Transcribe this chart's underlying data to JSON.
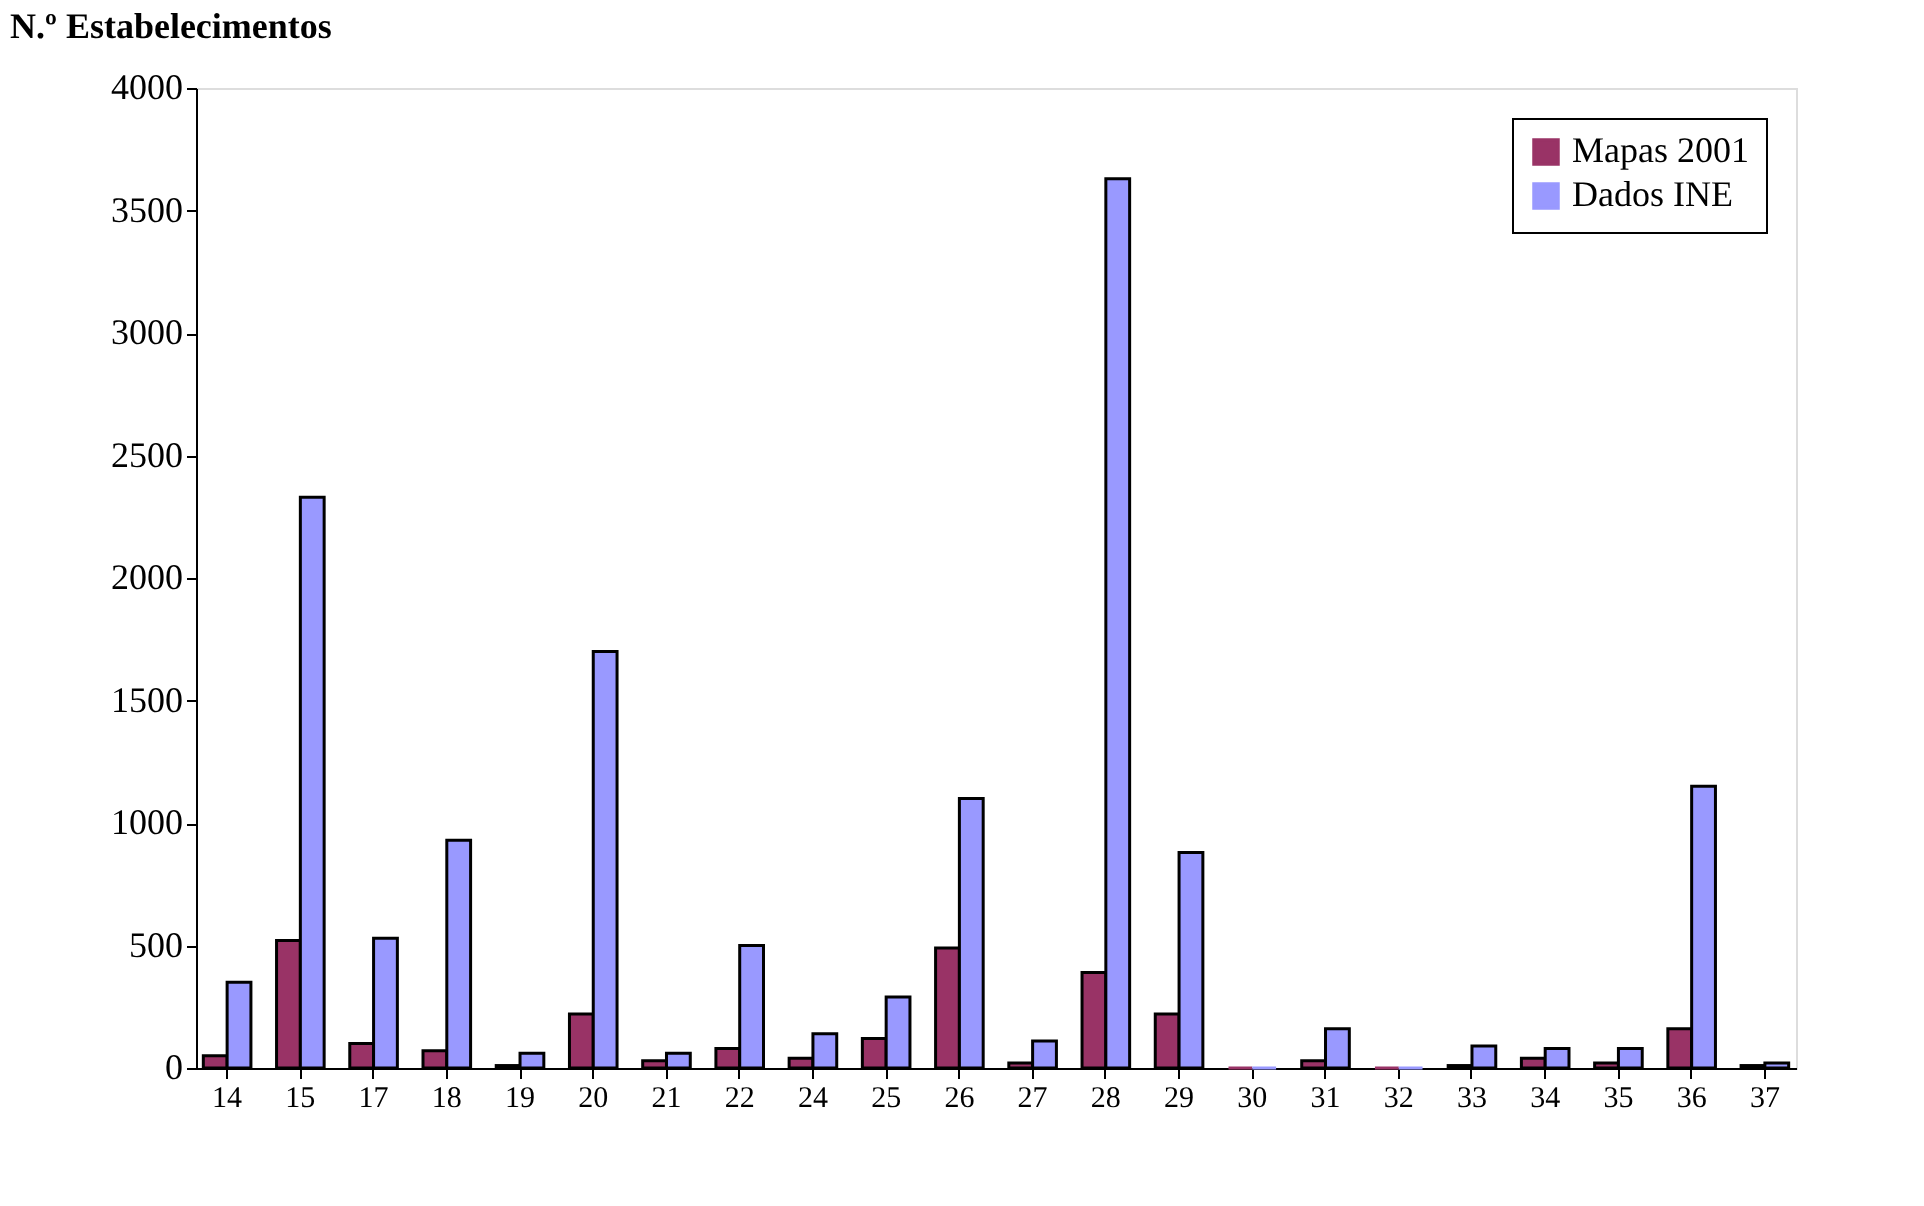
{
  "chart_data": {
    "type": "bar",
    "ylabel": "N.º Estabelecimentos",
    "categories": [
      "14",
      "15",
      "17",
      "18",
      "19",
      "20",
      "21",
      "22",
      "24",
      "25",
      "26",
      "27",
      "28",
      "29",
      "30",
      "31",
      "32",
      "33",
      "34",
      "35",
      "36",
      "37"
    ],
    "series": [
      {
        "name": "Mapas 2001",
        "color": "#993366",
        "values": [
          50,
          520,
          100,
          70,
          10,
          220,
          30,
          80,
          40,
          120,
          490,
          20,
          390,
          220,
          0,
          30,
          0,
          10,
          40,
          20,
          160,
          10
        ]
      },
      {
        "name": "Dados INE",
        "color": "#9999ff",
        "values": [
          350,
          2330,
          530,
          930,
          60,
          1700,
          60,
          500,
          140,
          290,
          1100,
          110,
          3630,
          880,
          0,
          160,
          0,
          90,
          80,
          80,
          1150,
          20
        ]
      }
    ],
    "ylim": [
      0,
      4000
    ],
    "yticks": [
      0,
      500,
      1000,
      1500,
      2000,
      2500,
      3000,
      3500,
      4000
    ],
    "grid": false,
    "legend": "top right"
  }
}
